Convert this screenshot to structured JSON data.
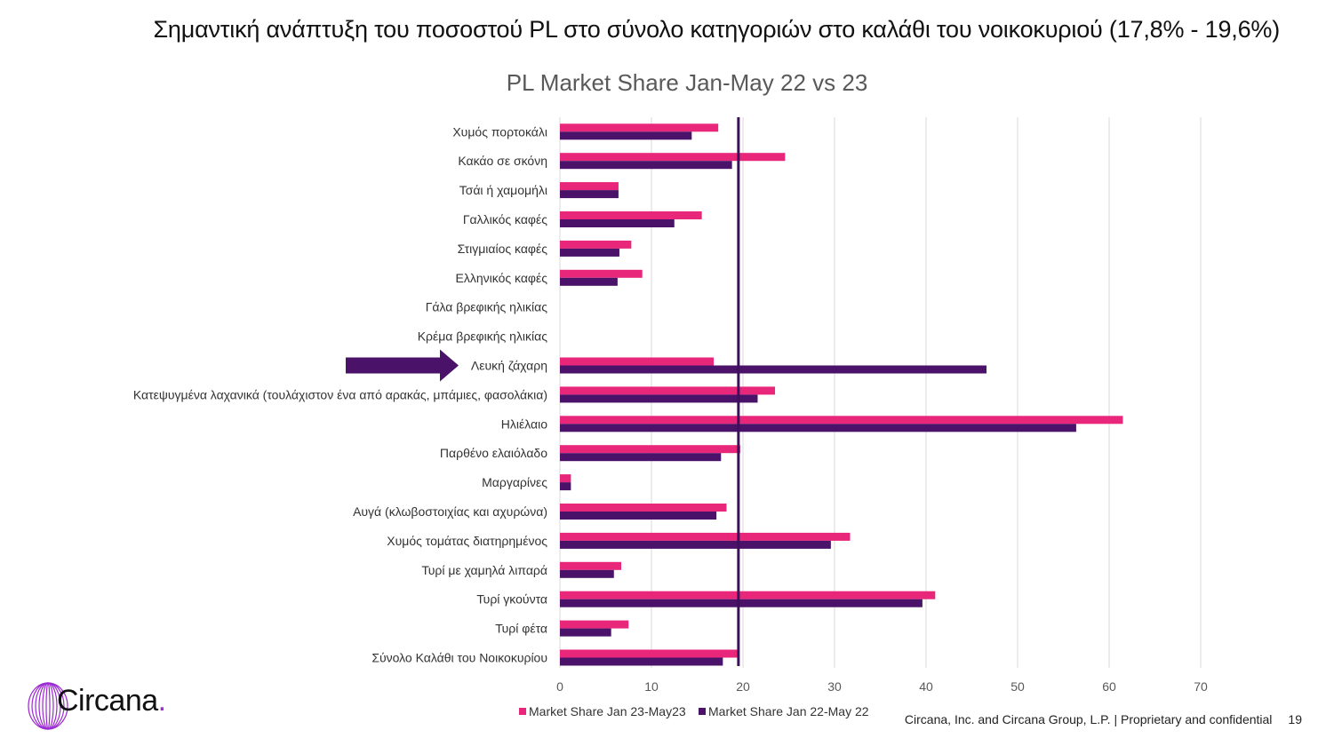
{
  "headline": "Σημαντική ανάπτυξη του ποσοστού PL στο σύνολο κατηγοριών στο καλάθι του νοικοκυριού (17,8% - 19,6%)",
  "colors": {
    "series_2023": "#e8267a",
    "series_2022": "#4a1268",
    "reference_line": "#3d0f5c",
    "arrow": "#4a1268",
    "grid": "#d9d9d9",
    "logo_ring": "#9b2bd1"
  },
  "logo": {
    "name": "Circana",
    "dot": "."
  },
  "footer": {
    "text": "Circana, Inc. and Circana Group, L.P. |  Proprietary and confidential",
    "page_number": "19"
  },
  "chart_data": {
    "type": "bar",
    "orientation": "horizontal",
    "title": "PL Market Share Jan-May 22 vs 23",
    "xlim": [
      0,
      70
    ],
    "xticks": [
      0,
      10,
      20,
      30,
      40,
      50,
      60,
      70
    ],
    "grid": true,
    "legend_position": "bottom",
    "reference_line_value": 19.6,
    "highlighted_category": "Λευκή ζάχαρη",
    "categories": [
      "Χυμός πορτοκάλι",
      "Κακάο σε σκόνη",
      "Τσάι ή χαμομήλι",
      "Γαλλικός καφές",
      "Στιγμιαίος καφές",
      "Ελληνικός καφές",
      "Γάλα βρεφικής ηλικίας",
      "Κρέμα βρεφικής ηλικίας",
      "Λευκή ζάχαρη",
      "Κατεψυγμένα λαχανικά (τουλάχιστον ένα από αρακάς, μπάμιες, φασολάκια)",
      "Ηλιέλαιο",
      "Παρθένο ελαιόλαδο",
      "Μαργαρίνες",
      "Αυγά (κλωβοστοιχίας και αχυρώνα)",
      "Χυμός τομάτας διατηρημένος",
      "Τυρί με χαμηλά λιπαρά",
      "Τυρί γκούντα",
      "Τυρί φέτα",
      "Σύνολο Καλάθι του Νοικοκυρίου"
    ],
    "series": [
      {
        "name": "Market Share Jan 23-May23",
        "color": "#e8267a",
        "values": [
          17.3,
          24.6,
          6.4,
          15.5,
          7.8,
          9.0,
          0,
          0,
          16.8,
          23.5,
          61.5,
          19.7,
          1.2,
          18.2,
          31.7,
          6.7,
          41.0,
          7.5,
          19.6
        ]
      },
      {
        "name": "Market Share Jan 22-May 22",
        "color": "#4a1268",
        "values": [
          14.4,
          18.8,
          6.4,
          12.5,
          6.5,
          6.3,
          0,
          0,
          46.6,
          21.6,
          56.4,
          17.6,
          1.2,
          17.1,
          29.6,
          5.9,
          39.6,
          5.6,
          17.8
        ]
      }
    ]
  }
}
